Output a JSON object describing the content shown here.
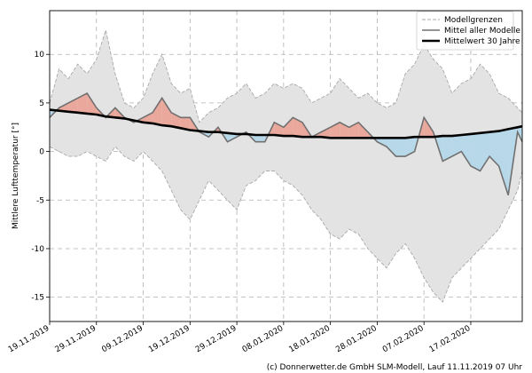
{
  "colors": {
    "band_fill": "#e3e3e3",
    "band_edge": "#a8a8a8",
    "warm_fill": "#eaa89c",
    "cold_fill": "#b7d8e8",
    "model_mean": "#707070",
    "climate_mean": "#000000",
    "grid": "#b0b0b0"
  },
  "chart_data": {
    "type": "area",
    "ylabel": "Mittlere Lufttemperatur [°]",
    "ylim": [
      -17.5,
      14.5
    ],
    "yticks": [
      -15,
      -10,
      -5,
      0,
      5,
      10
    ],
    "x_start": "2019-11-19",
    "x_end": "2020-02-28",
    "x_ticks": [
      "2019-11-19",
      "2019-11-29",
      "2019-12-09",
      "2019-12-19",
      "2019-12-29",
      "2020-01-08",
      "2020-01-18",
      "2020-01-28",
      "2020-02-07",
      "2020-02-17"
    ],
    "x_tick_labels": [
      "19.11.2019",
      "29.11.2019",
      "09.12.2019",
      "19.12.2019",
      "29.12.2019",
      "08.01.2020",
      "18.01.2020",
      "28.01.2020",
      "07.02.2020",
      "17.02.2020"
    ],
    "x": [
      "2019-11-19",
      "2019-11-21",
      "2019-11-23",
      "2019-11-25",
      "2019-11-27",
      "2019-11-29",
      "2019-12-01",
      "2019-12-03",
      "2019-12-05",
      "2019-12-07",
      "2019-12-09",
      "2019-12-11",
      "2019-12-13",
      "2019-12-15",
      "2019-12-17",
      "2019-12-19",
      "2019-12-21",
      "2019-12-23",
      "2019-12-25",
      "2019-12-27",
      "2019-12-29",
      "2019-12-31",
      "2020-01-02",
      "2020-01-04",
      "2020-01-06",
      "2020-01-08",
      "2020-01-10",
      "2020-01-12",
      "2020-01-14",
      "2020-01-16",
      "2020-01-18",
      "2020-01-20",
      "2020-01-22",
      "2020-01-24",
      "2020-01-26",
      "2020-01-28",
      "2020-01-30",
      "2020-02-01",
      "2020-02-03",
      "2020-02-05",
      "2020-02-07",
      "2020-02-09",
      "2020-02-11",
      "2020-02-13",
      "2020-02-15",
      "2020-02-17",
      "2020-02-19",
      "2020-02-21",
      "2020-02-23",
      "2020-02-25",
      "2020-02-27",
      "2020-02-28"
    ],
    "series": [
      {
        "name": "Modellgrenzen",
        "kind": "upper",
        "values": [
          5,
          8.5,
          7.5,
          9,
          8,
          9.5,
          12.5,
          8,
          5,
          4.5,
          5.5,
          8,
          10,
          7,
          6,
          6.5,
          3,
          4,
          4.5,
          5.5,
          6,
          7,
          5.5,
          6,
          7,
          6.5,
          7,
          6.5,
          5,
          5.5,
          6,
          7.5,
          6.5,
          5.5,
          6,
          5,
          4.5,
          5,
          8,
          9,
          11,
          9.5,
          8.5,
          6,
          7,
          7.5,
          9,
          8,
          6,
          5.5,
          4.5,
          4
        ]
      },
      {
        "name": "Modellgrenzen",
        "kind": "lower",
        "values": [
          0.5,
          0,
          -0.5,
          -0.5,
          0,
          -0.5,
          -1,
          0.5,
          -0.5,
          -1,
          0,
          -1,
          -2,
          -4,
          -6,
          -7,
          -5,
          -3,
          -4,
          -5,
          -6,
          -3.5,
          -3,
          -2,
          -2,
          -3,
          -3.5,
          -4.5,
          -6,
          -7,
          -8.5,
          -9,
          -8,
          -8.5,
          -10,
          -11,
          -12,
          -10.5,
          -9.5,
          -11,
          -13,
          -14.5,
          -15.5,
          -13,
          -12,
          -11,
          -10,
          -9,
          -8,
          -6,
          -4,
          -2
        ]
      },
      {
        "name": "Mittel aller Modelle",
        "values": [
          3.5,
          4.5,
          5,
          5.5,
          6,
          4.5,
          3.5,
          4.5,
          3.5,
          3,
          3.5,
          4,
          5.5,
          4,
          3.5,
          3.5,
          2,
          1.5,
          2.5,
          1,
          1.5,
          2,
          1,
          1,
          3,
          2.5,
          3.5,
          3,
          1.5,
          2,
          2.5,
          3,
          2.5,
          3,
          2,
          1,
          0.5,
          -0.5,
          -0.5,
          0,
          3.5,
          2,
          -1,
          -0.5,
          0,
          -1.5,
          -2,
          -0.5,
          -1.5,
          -4.5,
          2,
          1
        ]
      },
      {
        "name": "Mittelwert 30 Jahre",
        "values": [
          4.3,
          4.2,
          4.1,
          4.0,
          3.9,
          3.8,
          3.6,
          3.5,
          3.4,
          3.2,
          3.0,
          2.9,
          2.7,
          2.6,
          2.4,
          2.2,
          2.1,
          2.0,
          2.0,
          1.9,
          1.8,
          1.8,
          1.7,
          1.7,
          1.7,
          1.6,
          1.6,
          1.5,
          1.5,
          1.5,
          1.4,
          1.4,
          1.4,
          1.4,
          1.4,
          1.4,
          1.4,
          1.4,
          1.4,
          1.5,
          1.5,
          1.5,
          1.6,
          1.6,
          1.7,
          1.8,
          1.9,
          2.0,
          2.1,
          2.3,
          2.5,
          2.6
        ]
      }
    ],
    "legend": {
      "placement": "top-right",
      "entries": [
        {
          "label": "Modellgrenzen",
          "style": "dashed-gray"
        },
        {
          "label": "Mittel aller Modelle",
          "style": "solid-gray"
        },
        {
          "label": "Mittelwert 30 Jahre",
          "style": "solid-black-thick"
        }
      ]
    },
    "grid": true,
    "credit": "(c) Donnerwetter.de GmbH SLM-Modell, Lauf 11.11.2019 07 Uhr"
  }
}
